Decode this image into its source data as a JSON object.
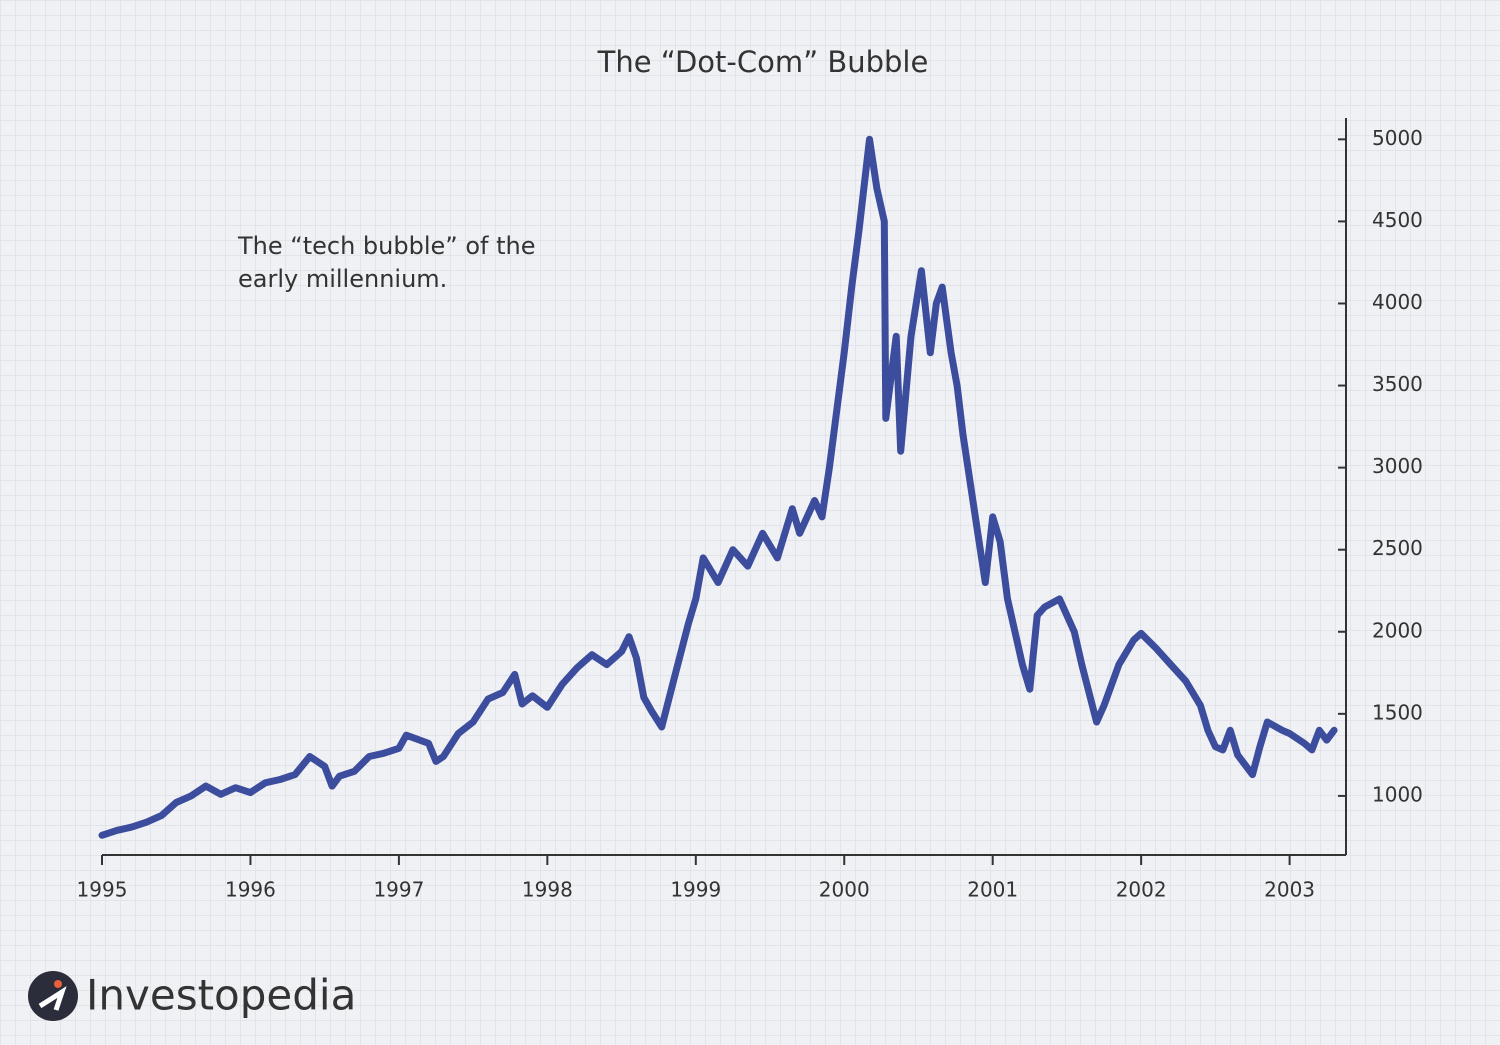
{
  "chart_data": {
    "type": "line",
    "title": "The “Dot-Com” Bubble",
    "annotation": "The “tech bubble” of the early millennium.",
    "brand": "Investopedia",
    "color": "#3d4d9e",
    "x": [
      1995.0,
      1995.1,
      1995.2,
      1995.3,
      1995.4,
      1995.5,
      1995.6,
      1995.7,
      1995.8,
      1995.9,
      1996.0,
      1996.1,
      1996.2,
      1996.3,
      1996.4,
      1996.5,
      1996.55,
      1996.6,
      1996.7,
      1996.8,
      1996.9,
      1997.0,
      1997.05,
      1997.2,
      1997.25,
      1997.3,
      1997.4,
      1997.5,
      1997.6,
      1997.7,
      1997.78,
      1997.83,
      1997.9,
      1998.0,
      1998.1,
      1998.2,
      1998.3,
      1998.4,
      1998.5,
      1998.55,
      1998.6,
      1998.65,
      1998.7,
      1998.77,
      1998.85,
      1998.95,
      1999.0,
      1999.05,
      1999.15,
      1999.25,
      1999.35,
      1999.45,
      1999.55,
      1999.65,
      1999.7,
      1999.8,
      1999.85,
      1999.9,
      1999.95,
      2000.0,
      2000.05,
      2000.1,
      2000.17,
      2000.22,
      2000.27,
      2000.28,
      2000.35,
      2000.38,
      2000.45,
      2000.52,
      2000.58,
      2000.62,
      2000.66,
      2000.72,
      2000.76,
      2000.8,
      2000.85,
      2000.9,
      2000.95,
      2001.0,
      2001.05,
      2001.1,
      2001.2,
      2001.25,
      2001.3,
      2001.35,
      2001.45,
      2001.55,
      2001.6,
      2001.7,
      2001.75,
      2001.85,
      2001.95,
      2002.0,
      2002.1,
      2002.2,
      2002.3,
      2002.4,
      2002.45,
      2002.5,
      2002.55,
      2002.6,
      2002.65,
      2002.75,
      2002.8,
      2002.85,
      2002.95,
      2003.0,
      2003.1,
      2003.15,
      2003.2,
      2003.25,
      2003.3
    ],
    "values": [
      760,
      790,
      810,
      840,
      880,
      960,
      1000,
      1060,
      1010,
      1050,
      1020,
      1080,
      1100,
      1130,
      1240,
      1180,
      1060,
      1120,
      1150,
      1240,
      1260,
      1290,
      1370,
      1320,
      1210,
      1240,
      1380,
      1450,
      1590,
      1630,
      1740,
      1560,
      1610,
      1540,
      1680,
      1780,
      1860,
      1800,
      1880,
      1970,
      1840,
      1600,
      1520,
      1420,
      1700,
      2050,
      2200,
      2450,
      2300,
      2500,
      2400,
      2600,
      2450,
      2750,
      2600,
      2800,
      2700,
      3000,
      3350,
      3700,
      4100,
      4450,
      5000,
      4700,
      4500,
      3300,
      3800,
      3100,
      3800,
      4200,
      3700,
      4000,
      4100,
      3700,
      3500,
      3200,
      2900,
      2600,
      2300,
      2700,
      2550,
      2200,
      1800,
      1650,
      2100,
      2150,
      2200,
      2000,
      1800,
      1450,
      1550,
      1800,
      1950,
      1990,
      1900,
      1800,
      1700,
      1550,
      1400,
      1300,
      1280,
      1400,
      1250,
      1130,
      1300,
      1450,
      1400,
      1380,
      1320,
      1280,
      1400,
      1340,
      1400
    ],
    "xlim": [
      1995,
      2003.38
    ],
    "xticks": [
      1995,
      1996,
      1997,
      1998,
      1999,
      2000,
      2001,
      2002,
      2003
    ],
    "ylim": [
      640,
      5130
    ],
    "yticks": [
      1000,
      1500,
      2000,
      2500,
      3000,
      3500,
      4000,
      4500,
      5000
    ]
  }
}
